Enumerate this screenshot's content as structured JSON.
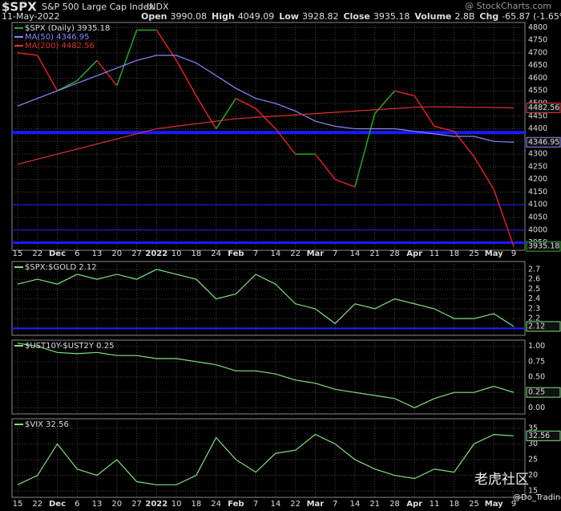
{
  "header": {
    "symbol": "$SPX",
    "name": "S&P 500 Large Cap Index",
    "exchange": "INDX",
    "source": "@ StockCharts.com",
    "date": "11-May-2022",
    "quote": [
      {
        "label": "Open",
        "value": "3990.08"
      },
      {
        "label": "High",
        "value": "4049.09"
      },
      {
        "label": "Low",
        "value": "3928.82"
      },
      {
        "label": "Close",
        "value": "3935.18"
      },
      {
        "label": "Volume",
        "value": "2.8B"
      },
      {
        "label": "Chg",
        "value": "-65.87 (-1.65%)"
      }
    ]
  },
  "watermark": {
    "main": "老虎社区",
    "user": "@Do_Trading"
  },
  "chart_data": [
    {
      "type": "line",
      "categories": [
        "15",
        "22",
        "Dec",
        "6",
        "13",
        "20",
        "27",
        "2022",
        "10",
        "18",
        "24",
        "Feb",
        "7",
        "14",
        "22",
        "Mar",
        "7",
        "14",
        "21",
        "28",
        "Apr",
        "11",
        "18",
        "25",
        "May",
        "9"
      ],
      "ylim": [
        3920,
        4820
      ],
      "yticks": [
        3950,
        4000,
        4050,
        4100,
        4150,
        4200,
        4250,
        4300,
        4350,
        4400,
        4450,
        4500,
        4550,
        4600,
        4650,
        4700,
        4750,
        4800
      ],
      "grid": true,
      "hlines": [
        {
          "value": 4385,
          "color": "#1a1aff",
          "width": 4
        },
        {
          "value": 4100,
          "color": "#2020ff",
          "width": 1
        },
        {
          "value": 4000,
          "color": "#2020ff",
          "width": 1
        },
        {
          "value": 3950,
          "color": "#1a1aff",
          "width": 3
        }
      ],
      "series": [
        {
          "name": "$SPX (Daily) 3935.18",
          "color": "#22aa22",
          "down_color": "#e02020",
          "values": [
            4700,
            4690,
            4550,
            4590,
            4670,
            4570,
            4790,
            4790,
            4670,
            4530,
            4400,
            4520,
            4480,
            4400,
            4300,
            4300,
            4200,
            4170,
            4460,
            4550,
            4530,
            4410,
            4390,
            4290,
            4160,
            3935.18
          ]
        },
        {
          "name": "MA(50) 4346.95",
          "color": "#8888ff",
          "values": [
            4490,
            4520,
            4550,
            4580,
            4610,
            4640,
            4670,
            4690,
            4690,
            4660,
            4610,
            4560,
            4520,
            4500,
            4470,
            4430,
            4410,
            4400,
            4400,
            4400,
            4390,
            4380,
            4370,
            4370,
            4350,
            4346.95
          ]
        },
        {
          "name": "MA(200) 4482.56",
          "color": "#e03030",
          "values": [
            4260,
            4280,
            4300,
            4320,
            4340,
            4360,
            4380,
            4400,
            4410,
            4420,
            4430,
            4440,
            4445,
            4450,
            4455,
            4460,
            4465,
            4470,
            4475,
            4480,
            4485,
            4487,
            4486,
            4485,
            4484,
            4482.56
          ]
        }
      ]
    },
    {
      "type": "line",
      "ylim": [
        2.03,
        2.78
      ],
      "yticks": [
        2.1,
        2.2,
        2.3,
        2.4,
        2.5,
        2.6,
        2.7
      ],
      "grid": true,
      "hlines": [
        {
          "value": 2.1,
          "color": "#2020ff",
          "width": 2
        }
      ],
      "series": [
        {
          "name": "$SPX:$GOLD 2.12",
          "color": "#80e080",
          "values": [
            2.55,
            2.6,
            2.55,
            2.65,
            2.6,
            2.65,
            2.6,
            2.7,
            2.65,
            2.6,
            2.4,
            2.45,
            2.65,
            2.55,
            2.35,
            2.3,
            2.15,
            2.35,
            2.3,
            2.4,
            2.35,
            2.3,
            2.2,
            2.2,
            2.25,
            2.12
          ]
        }
      ]
    },
    {
      "type": "line",
      "ylim": [
        -0.1,
        1.1
      ],
      "yticks": [
        {
          "value": 1,
          "label": "1.00"
        },
        {
          "value": 0.75,
          "label": "0.75"
        },
        {
          "value": 0.5,
          "label": "0.50"
        },
        {
          "value": 0.25,
          "label": "0.25"
        },
        {
          "value": 0,
          "label": "0.00"
        }
      ],
      "grid": true,
      "series": [
        {
          "name": "$UST10Y-$UST2Y 0.25",
          "color": "#80e080",
          "values": [
            1.05,
            1,
            0.9,
            0.88,
            0.9,
            0.85,
            0.85,
            0.8,
            0.8,
            0.75,
            0.7,
            0.6,
            0.6,
            0.55,
            0.45,
            0.4,
            0.3,
            0.25,
            0.2,
            0.15,
            0,
            0.15,
            0.25,
            0.25,
            0.35,
            0.25
          ]
        }
      ]
    },
    {
      "type": "line",
      "ylim": [
        13,
        38
      ],
      "yticks": [
        15,
        20,
        25,
        30,
        35
      ],
      "grid": true,
      "series": [
        {
          "name": "$VIX 32.56",
          "color": "#80e080",
          "values": [
            17,
            20,
            30,
            22,
            20,
            25,
            18,
            17,
            17,
            20,
            32,
            25,
            21,
            27,
            28,
            33,
            30,
            25,
            22,
            20,
            19,
            22,
            21,
            30,
            33,
            32.56
          ]
        }
      ]
    }
  ]
}
